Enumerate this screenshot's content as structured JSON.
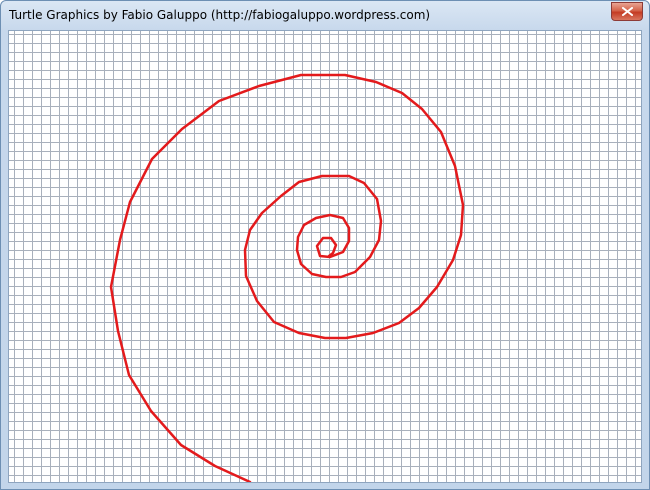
{
  "window": {
    "title": "Turtle Graphics by Fabio Galuppo (http://fabiogaluppo.wordpress.com)"
  },
  "controls": {
    "close_icon": "close-icon"
  },
  "canvas": {
    "background": "#ffffff",
    "grid_color": "#a8b0bc",
    "grid_spacing": 9,
    "path_color": "#e31a1c",
    "shape": "spiral"
  }
}
